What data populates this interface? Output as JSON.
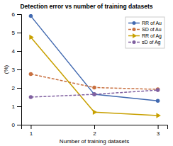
{
  "chart_data": {
    "type": "line",
    "title": "Detection error vs number of training datasets",
    "xlabel": "Number of training datasets",
    "ylabel": "(%)",
    "x": [
      1,
      2,
      3
    ],
    "series": [
      {
        "name": "RR of Au",
        "color": "#4169b0",
        "values": [
          5.9,
          1.65,
          1.3
        ],
        "marker": "circle",
        "line_style": "solid"
      },
      {
        "name": "SD of Au",
        "color": "#c87040",
        "values": [
          2.75,
          2.02,
          1.92
        ],
        "marker": "circle",
        "line_style": "dashed"
      },
      {
        "name": "RR of Ag",
        "color": "#c8a000",
        "values": [
          4.75,
          0.68,
          0.5
        ],
        "marker": "triangle-right",
        "line_style": "solid"
      },
      {
        "name": "sD of Ag",
        "color": "#8060a0",
        "values": [
          1.5,
          1.65,
          1.88
        ],
        "marker": "circle",
        "line_style": "dashed"
      }
    ],
    "xlim": [
      0.85,
      3.15
    ],
    "ylim": [
      0,
      6.0
    ],
    "xticks": [
      1,
      2,
      3
    ],
    "yticks": [
      0,
      1,
      2,
      3,
      4,
      5,
      6
    ],
    "grid": false,
    "legend": "upper right"
  }
}
